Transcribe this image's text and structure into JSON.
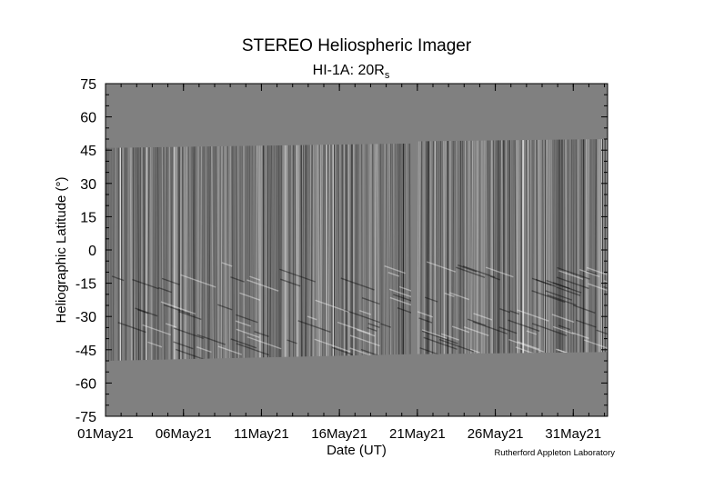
{
  "chart_data": {
    "type": "heatmap",
    "title": "STEREO Heliospheric Imager",
    "subtitle_main": "HI-1A: 20R",
    "subtitle_sub": "s",
    "xlabel": "Date (UT)",
    "ylabel": "Heliographic Latitude (°)",
    "credit": "Rutherford Appleton Laboratory",
    "x_ticks": [
      "01May21",
      "06May21",
      "11May21",
      "16May21",
      "21May21",
      "26May21",
      "31May21"
    ],
    "x_tick_days": [
      1,
      6,
      11,
      16,
      21,
      26,
      31
    ],
    "xlim_days": [
      1,
      33.2
    ],
    "y_ticks": [
      "75",
      "60",
      "45",
      "30",
      "15",
      "0",
      "-15",
      "-30",
      "-45",
      "-60",
      "-75"
    ],
    "y_tick_values": [
      75,
      60,
      45,
      30,
      15,
      0,
      -15,
      -30,
      -45,
      -60,
      -75
    ],
    "ylim": [
      -75,
      75
    ],
    "colors": {
      "background": "#808080",
      "dark": "#000000",
      "light": "#ffffff"
    },
    "data_segments": [
      {
        "start_day": 1,
        "end_day": 20.6,
        "lat_top_start": 46,
        "lat_top_end": 48,
        "lat_bottom_start": -50,
        "lat_bottom_end": -47
      },
      {
        "start_day": 21.0,
        "end_day": 33.2,
        "lat_top_start": 49,
        "lat_top_end": 50,
        "lat_bottom_start": -47,
        "lat_bottom_end": -46
      }
    ],
    "data_gap": {
      "start_day": 20.6,
      "end_day": 21.0
    }
  }
}
